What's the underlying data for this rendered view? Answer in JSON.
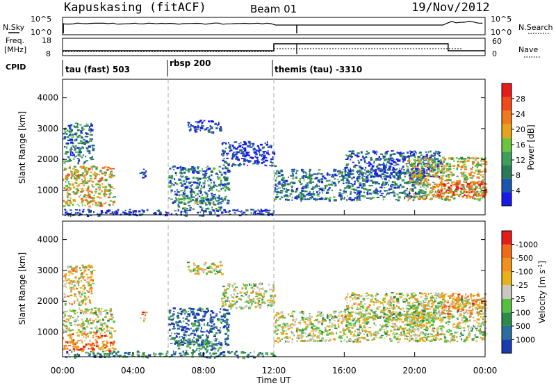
{
  "header": {
    "title": "Kapuskasing (fitACF)",
    "beam": "Beam 01",
    "date": "19/Nov/2012"
  },
  "nsky_panel": {
    "left_label": "N.Sky",
    "left_ticks": [
      "10^5",
      "10^0"
    ],
    "right_label": "N.Search",
    "right_ticks": [
      "10^5",
      "10^0"
    ]
  },
  "freq_panel": {
    "left_label_1": "Freq.",
    "left_label_2": "[MHz]",
    "left_ticks": [
      "18",
      "8"
    ],
    "right_label": "Nave",
    "right_ticks": [
      "60",
      "0"
    ]
  },
  "cpid_panel": {
    "label": "CPID",
    "segments": [
      {
        "start_hour": 0,
        "text": "tau (fast) 503"
      },
      {
        "start_hour": 6,
        "text": "rbsp 200"
      },
      {
        "start_hour": 12,
        "text": "themis (tau) -3310"
      }
    ]
  },
  "chart_data": [
    {
      "type": "heatmap",
      "title": "",
      "xlabel": "",
      "ylabel": "Slant Range [km]",
      "xlim": [
        0,
        24
      ],
      "ylim": [
        200,
        4600
      ],
      "y_ticks": [
        "1000",
        "2000",
        "3000",
        "4000"
      ],
      "colorbar": {
        "label": "Power [dB]",
        "ticks": [
          "4",
          "8",
          "12",
          "16",
          "20",
          "24",
          "28"
        ],
        "colors": [
          "#1a1ae6",
          "#1a55b0",
          "#2a7a5a",
          "#3f9e5c",
          "#6bc43a",
          "#e8a31a",
          "#f07a1a",
          "#f04a1a",
          "#e81a1a"
        ]
      },
      "blobs": [
        {
          "x": [
            0.0,
            2.9
          ],
          "y": [
            500,
            1800
          ],
          "level": 0.6
        },
        {
          "x": [
            0.0,
            1.7
          ],
          "y": [
            1900,
            3200
          ],
          "level": 0.25
        },
        {
          "x": [
            4.3,
            4.7
          ],
          "y": [
            1400,
            1700
          ],
          "level": 0.1
        },
        {
          "x": [
            6.0,
            9.4
          ],
          "y": [
            600,
            1800
          ],
          "level": 0.25
        },
        {
          "x": [
            6.5,
            9.0
          ],
          "y": [
            400,
            800
          ],
          "level": 0.35
        },
        {
          "x": [
            7.0,
            9.0
          ],
          "y": [
            2900,
            3300
          ],
          "level": 0.1
        },
        {
          "x": [
            9.0,
            12.0
          ],
          "y": [
            1800,
            2600
          ],
          "level": 0.1
        },
        {
          "x": [
            12.0,
            20.5
          ],
          "y": [
            700,
            1700
          ],
          "level": 0.25
        },
        {
          "x": [
            16.0,
            21.5
          ],
          "y": [
            1400,
            2300
          ],
          "level": 0.15
        },
        {
          "x": [
            19.5,
            24.0
          ],
          "y": [
            700,
            2100
          ],
          "level": 0.55
        },
        {
          "x": [
            21.0,
            24.0
          ],
          "y": [
            800,
            1300
          ],
          "level": 0.85
        },
        {
          "x": [
            0.0,
            12.0
          ],
          "y": [
            200,
            400
          ],
          "level": 0.1
        }
      ]
    },
    {
      "type": "heatmap",
      "title": "",
      "xlabel": "Time UT",
      "ylabel": "Slant Range [km]",
      "xlim": [
        0,
        24
      ],
      "ylim": [
        200,
        4600
      ],
      "x_ticks": [
        "00:00",
        "04:00",
        "08:00",
        "12:00",
        "16:00",
        "20:00",
        "00:00"
      ],
      "y_ticks": [
        "1000",
        "2000",
        "3000",
        "4000"
      ],
      "colorbar": {
        "label": "Velocity [m s^-1]",
        "ticks": [
          "1000",
          "500",
          "100",
          "25",
          "-25",
          "-100",
          "-500",
          "-1000"
        ],
        "colors": [
          "#1a3ab0",
          "#2a6ea0",
          "#2e8a4a",
          "#55c040",
          "#c8c8c0",
          "#e8b01a",
          "#f0921a",
          "#f06a1a",
          "#e81a1a"
        ]
      },
      "blobs": [
        {
          "x": [
            0.0,
            2.9
          ],
          "y": [
            400,
            1000
          ],
          "level": 0.75
        },
        {
          "x": [
            0.0,
            2.9
          ],
          "y": [
            1000,
            1800
          ],
          "level": 0.5
        },
        {
          "x": [
            0.0,
            1.7
          ],
          "y": [
            1900,
            3200
          ],
          "level": 0.6
        },
        {
          "x": [
            4.3,
            4.7
          ],
          "y": [
            1400,
            1700
          ],
          "level": 0.7
        },
        {
          "x": [
            6.0,
            9.4
          ],
          "y": [
            600,
            1800
          ],
          "level": 0.15
        },
        {
          "x": [
            6.5,
            9.0
          ],
          "y": [
            400,
            800
          ],
          "level": 0.3
        },
        {
          "x": [
            7.0,
            9.0
          ],
          "y": [
            2900,
            3300
          ],
          "level": 0.5
        },
        {
          "x": [
            9.0,
            12.0
          ],
          "y": [
            1800,
            2600
          ],
          "level": 0.5
        },
        {
          "x": [
            12.0,
            20.5
          ],
          "y": [
            700,
            1700
          ],
          "level": 0.5
        },
        {
          "x": [
            16.0,
            21.5
          ],
          "y": [
            1400,
            2300
          ],
          "level": 0.5
        },
        {
          "x": [
            19.5,
            24.0
          ],
          "y": [
            700,
            2100
          ],
          "level": 0.5
        },
        {
          "x": [
            21.5,
            24.0
          ],
          "y": [
            1600,
            2300
          ],
          "level": 0.7
        },
        {
          "x": [
            0.0,
            12.0
          ],
          "y": [
            200,
            400
          ],
          "level": 0.25
        }
      ]
    }
  ],
  "markers": {
    "cpid_change_hours": [
      6,
      12
    ],
    "nsky_drop_hours": [
      0.05,
      12,
      13.3
    ]
  },
  "colors": {
    "axis": "#000000",
    "dashed": "#aaaaaa"
  }
}
